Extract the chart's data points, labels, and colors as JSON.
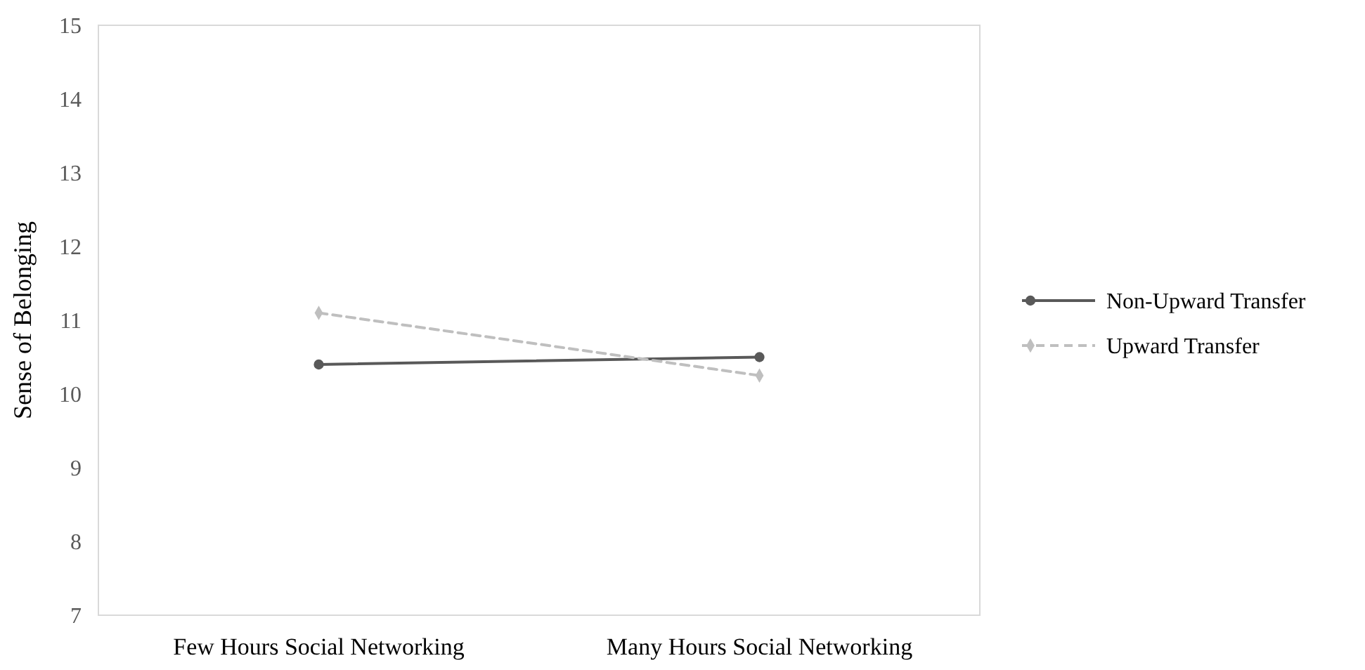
{
  "chart_data": {
    "type": "line",
    "ylabel": "Sense of Belonging",
    "categories": [
      "Few Hours Social Networking",
      "Many Hours Social Networking"
    ],
    "series": [
      {
        "name": "Non-Upward Transfer",
        "color": "#595959",
        "values": [
          10.4,
          10.5
        ],
        "marker": "circle",
        "line_style": "solid"
      },
      {
        "name": "Upward Transfer",
        "color": "#bfbfbf",
        "values": [
          11.1,
          10.25
        ],
        "marker": "diamond",
        "line_style": "dashed"
      }
    ],
    "ylim": [
      7,
      15
    ],
    "yticks": [
      7,
      8,
      9,
      10,
      11,
      12,
      13,
      14,
      15
    ],
    "grid": false,
    "legend": "right"
  }
}
